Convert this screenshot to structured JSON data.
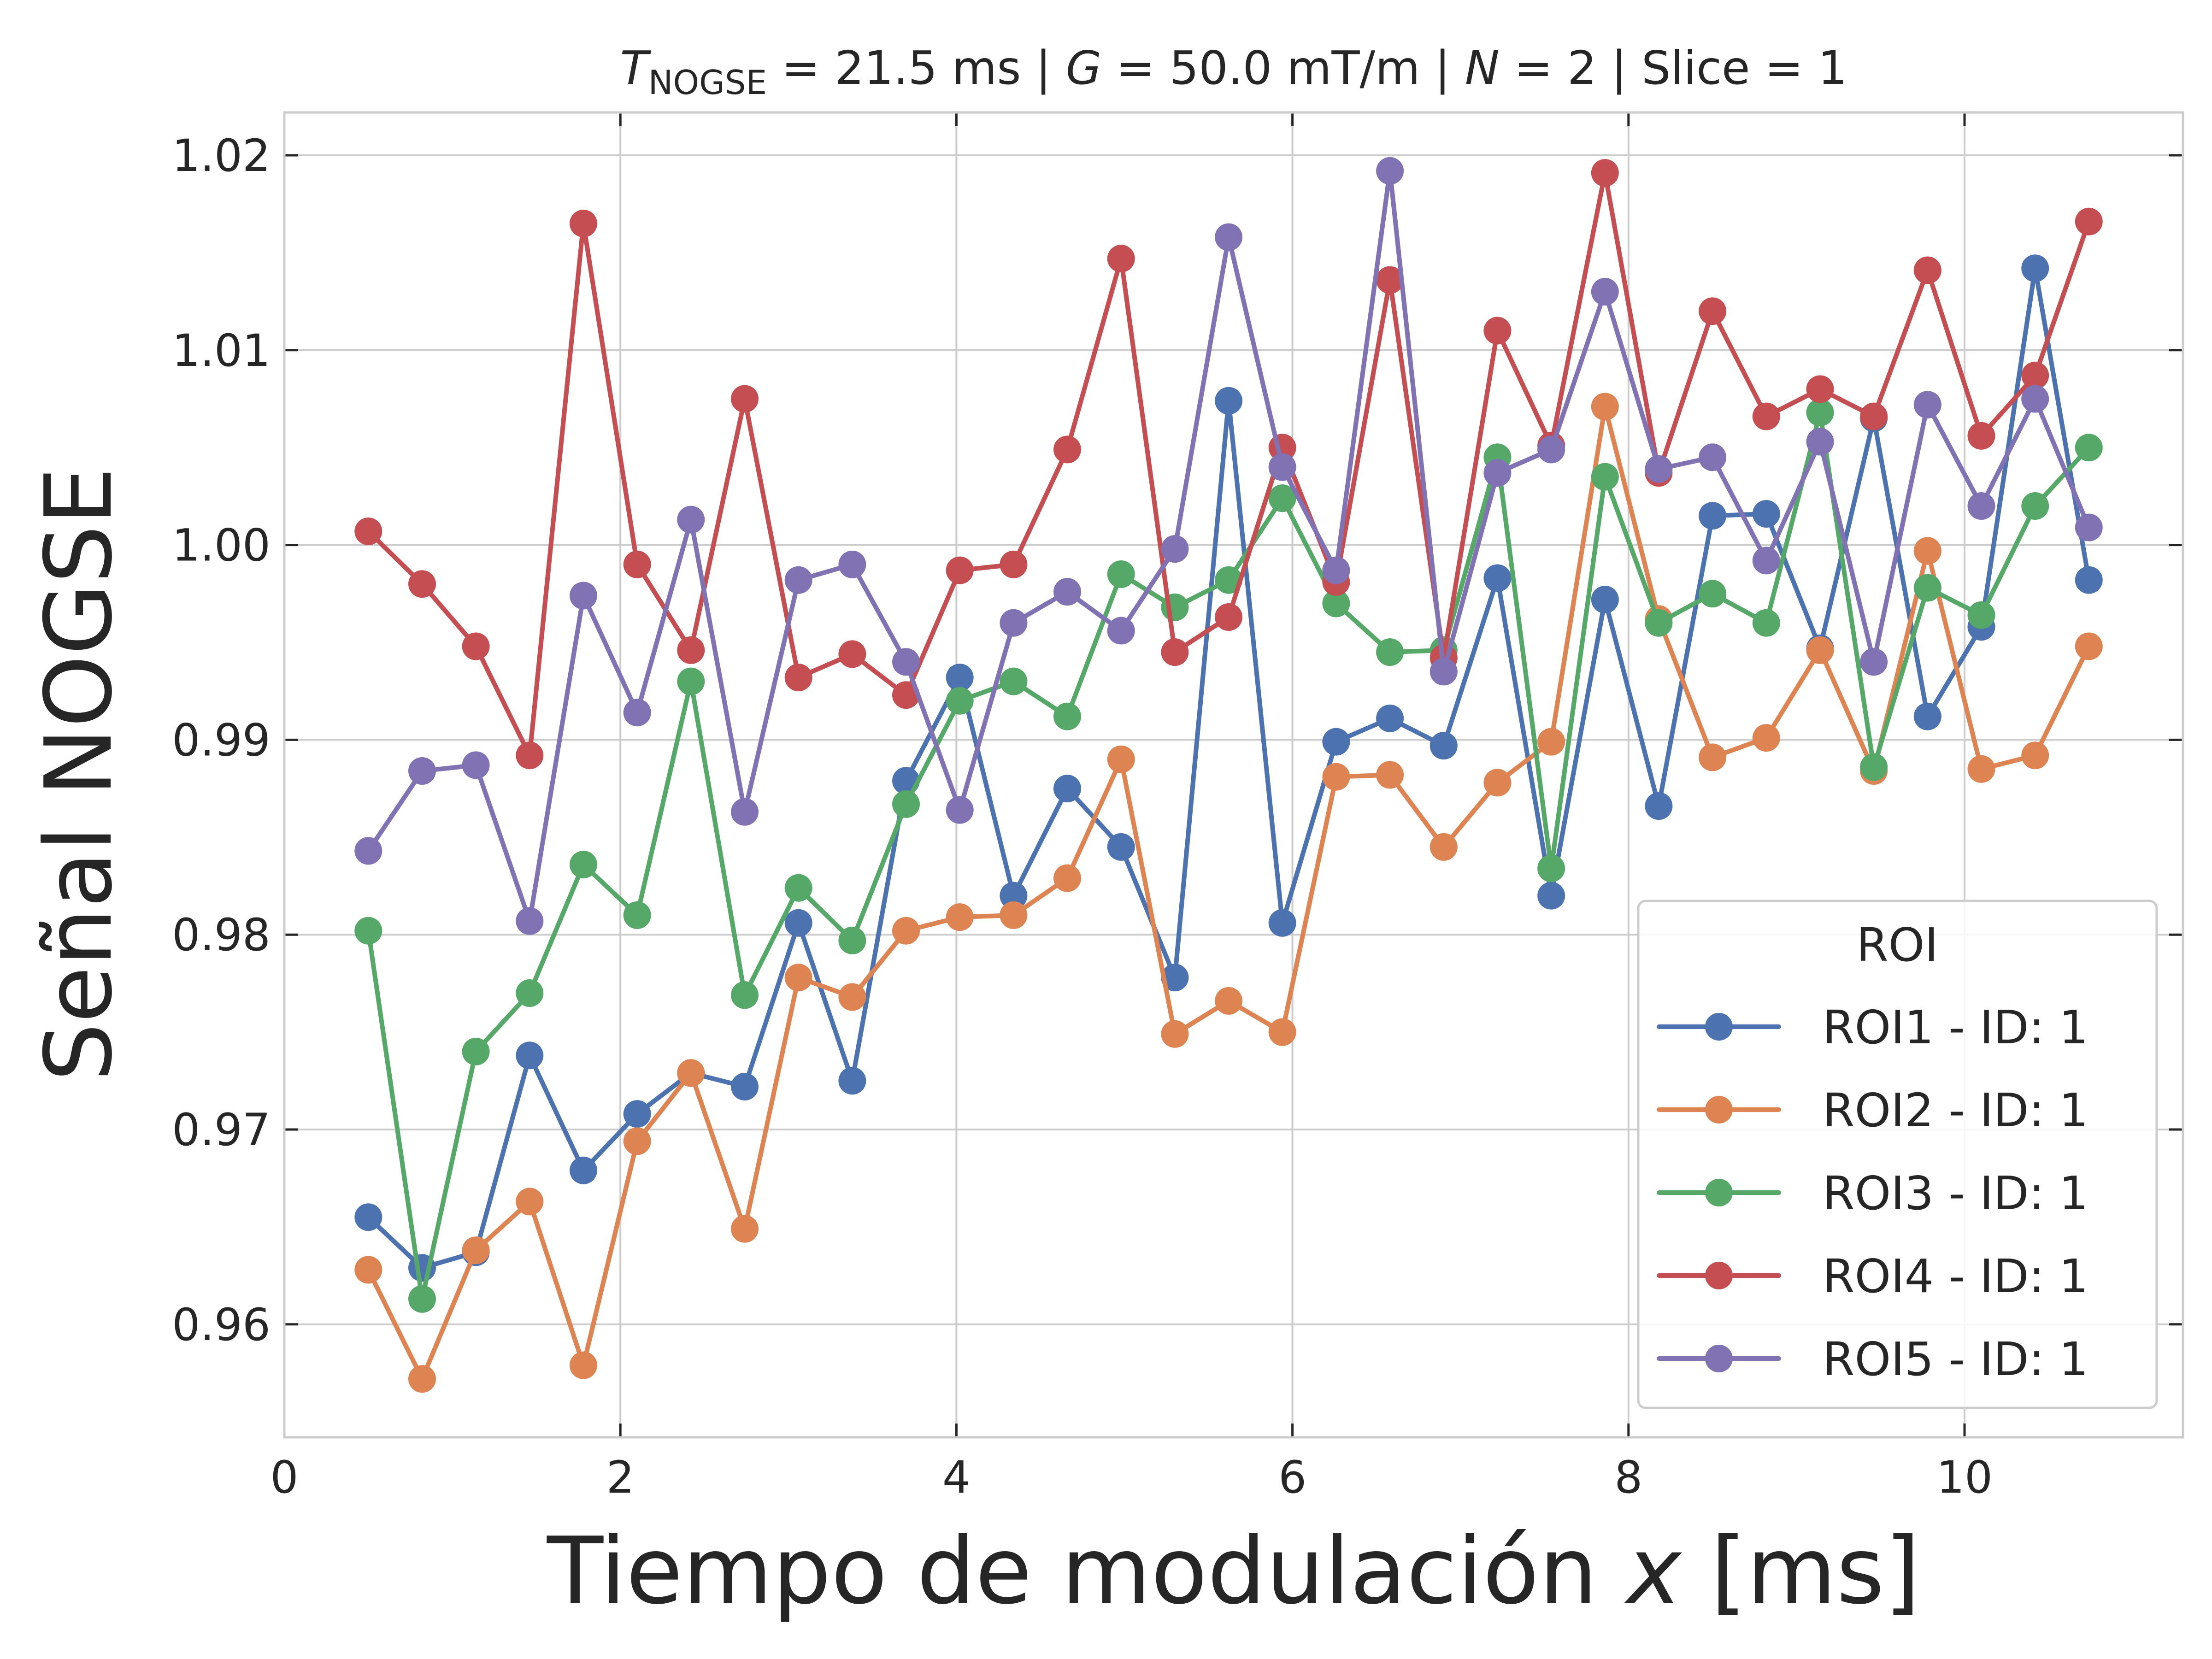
{
  "chart_data": {
    "type": "line",
    "title": {
      "prefix_var": "T",
      "prefix_sub": "NOGSE",
      "p1": " = 21.5 ms | ",
      "var_g": "G",
      "p2": " = 50.0 mT/m | ",
      "var_n": "N",
      "p3": " = 2 | Slice = 1"
    },
    "xlabel": {
      "text": "Tiempo de modulación ",
      "math": "x",
      "unit": " [ms]"
    },
    "ylabel": "Señal NOGSE",
    "xlim": [
      0,
      11.3
    ],
    "ylim": [
      0.9542,
      1.0222
    ],
    "xticks": [
      0,
      2,
      4,
      6,
      8,
      10
    ],
    "yticks": [
      0.96,
      0.97,
      0.98,
      0.99,
      1.0,
      1.01,
      1.02
    ],
    "ytick_labels": [
      "0.96",
      "0.97",
      "0.98",
      "0.99",
      "1.00",
      "1.01",
      "1.02"
    ],
    "grid": true,
    "legend": {
      "title": "ROI",
      "position": "lower right"
    },
    "x": [
      0.5,
      0.82,
      1.14,
      1.46,
      1.78,
      2.1,
      2.42,
      2.74,
      3.06,
      3.38,
      3.7,
      4.02,
      4.34,
      4.66,
      4.98,
      5.3,
      5.62,
      5.94,
      6.26,
      6.58,
      6.9,
      7.22,
      7.54,
      7.86,
      8.18,
      8.5,
      8.82,
      9.14,
      9.46,
      9.78,
      10.1,
      10.42,
      10.74
    ],
    "series": [
      {
        "name": "ROI1 - ID: 1",
        "color": "#4c72b0",
        "values": [
          0.9655,
          0.9629,
          0.9637,
          0.9738,
          0.9679,
          0.9708,
          0.9729,
          0.9722,
          0.9806,
          0.9725,
          0.9879,
          0.9932,
          0.982,
          0.9875,
          0.9845,
          0.9778,
          1.0074,
          0.9806,
          0.9899,
          0.9911,
          0.9897,
          0.9983,
          0.982,
          0.9972,
          0.9866,
          1.0015,
          1.0016,
          0.9947,
          1.0065,
          0.9912,
          0.9958,
          1.0142,
          0.9982
        ]
      },
      {
        "name": "ROI2 - ID: 1",
        "color": "#dd8452",
        "values": [
          0.9628,
          0.9572,
          0.9638,
          0.9663,
          0.9579,
          0.9694,
          0.9729,
          0.9649,
          0.9778,
          0.9768,
          0.9802,
          0.9809,
          0.981,
          0.9829,
          0.989,
          0.9749,
          0.9766,
          0.975,
          0.9881,
          0.9882,
          0.9845,
          0.9878,
          0.9899,
          1.0071,
          0.9962,
          0.9891,
          0.9901,
          0.9946,
          0.9884,
          0.9997,
          0.9885,
          0.9892,
          0.9948
        ]
      },
      {
        "name": "ROI3 - ID: 1",
        "color": "#55a868",
        "values": [
          0.9802,
          0.9613,
          0.974,
          0.977,
          0.9836,
          0.981,
          0.993,
          0.9769,
          0.9824,
          0.9797,
          0.9867,
          0.992,
          0.993,
          0.9912,
          0.9985,
          0.9968,
          0.9982,
          1.0024,
          0.997,
          0.9945,
          0.9946,
          1.0045,
          0.9834,
          1.0035,
          0.996,
          0.9975,
          0.996,
          1.0068,
          0.9886,
          0.9978,
          0.9964,
          1.002,
          1.005
        ]
      },
      {
        "name": "ROI4 - ID: 1",
        "color": "#c44e52",
        "values": [
          1.0007,
          0.998,
          0.9948,
          0.9892,
          1.0165,
          0.999,
          0.9946,
          1.0075,
          0.9932,
          0.9944,
          0.9923,
          0.9987,
          0.999,
          1.0049,
          1.0147,
          0.9945,
          0.9963,
          1.005,
          0.9981,
          1.0136,
          0.9942,
          1.011,
          1.0051,
          1.0191,
          1.0037,
          1.012,
          1.0066,
          1.008,
          1.0066,
          1.0141,
          1.0056,
          1.0087,
          1.0166
        ]
      },
      {
        "name": "ROI5 - ID: 1",
        "color": "#8172b3",
        "values": [
          0.9843,
          0.9884,
          0.9887,
          0.9807,
          0.9974,
          0.9914,
          1.0013,
          0.9863,
          0.9982,
          0.999,
          0.994,
          0.9864,
          0.996,
          0.9976,
          0.9956,
          0.9998,
          1.0158,
          1.004,
          0.9987,
          1.0192,
          0.9935,
          1.0037,
          1.0049,
          1.013,
          1.0039,
          1.0045,
          0.9992,
          1.0053,
          0.994,
          1.0072,
          1.002,
          1.0075,
          1.0009
        ]
      }
    ]
  }
}
